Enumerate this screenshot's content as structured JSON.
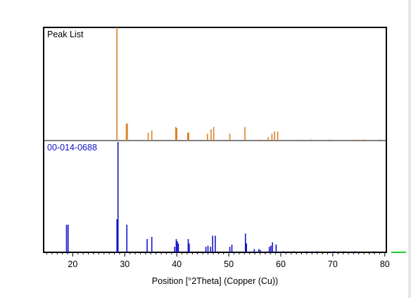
{
  "chart_data": {
    "type": "bar",
    "xlabel": "Position [°2Theta] (Copper (Cu))",
    "xlim": [
      14.4,
      80.3
    ],
    "xticks": [
      20,
      30,
      40,
      50,
      60,
      70,
      80
    ],
    "grid": false,
    "panels": [
      {
        "label": "Peak List",
        "label_color": "#000000",
        "color": "#d9822b",
        "max": 100,
        "peaks": [
          {
            "x": 28.5,
            "y": 100
          },
          {
            "x": 30.3,
            "y": 15
          },
          {
            "x": 30.5,
            "y": 15
          },
          {
            "x": 34.5,
            "y": 7
          },
          {
            "x": 35.2,
            "y": 9
          },
          {
            "x": 39.8,
            "y": 12
          },
          {
            "x": 40.0,
            "y": 11
          },
          {
            "x": 42.1,
            "y": 7
          },
          {
            "x": 42.3,
            "y": 7
          },
          {
            "x": 45.9,
            "y": 6
          },
          {
            "x": 46.6,
            "y": 10
          },
          {
            "x": 47.1,
            "y": 12
          },
          {
            "x": 50.2,
            "y": 6
          },
          {
            "x": 53.1,
            "y": 12
          },
          {
            "x": 55.8,
            "y": 1
          },
          {
            "x": 57.6,
            "y": 3
          },
          {
            "x": 58.3,
            "y": 6
          },
          {
            "x": 58.8,
            "y": 8
          },
          {
            "x": 59.4,
            "y": 8
          },
          {
            "x": 63.4,
            "y": 1
          },
          {
            "x": 65.8,
            "y": 1
          },
          {
            "x": 69.4,
            "y": 1
          },
          {
            "x": 74.8,
            "y": 1
          },
          {
            "x": 76.1,
            "y": 1
          },
          {
            "x": 79.0,
            "y": 1
          }
        ]
      },
      {
        "label": "00-014-0688",
        "label_color": "#1414c8",
        "color": "#1414c8",
        "max": 100,
        "peaks": [
          {
            "x": 18.8,
            "y": 25
          },
          {
            "x": 19.1,
            "y": 25
          },
          {
            "x": 28.5,
            "y": 30
          },
          {
            "x": 28.7,
            "y": 100
          },
          {
            "x": 30.4,
            "y": 25
          },
          {
            "x": 34.3,
            "y": 12
          },
          {
            "x": 35.2,
            "y": 14
          },
          {
            "x": 39.6,
            "y": 5
          },
          {
            "x": 39.9,
            "y": 12
          },
          {
            "x": 40.1,
            "y": 10
          },
          {
            "x": 40.3,
            "y": 8
          },
          {
            "x": 42.2,
            "y": 12
          },
          {
            "x": 42.4,
            "y": 8
          },
          {
            "x": 45.6,
            "y": 5
          },
          {
            "x": 46.0,
            "y": 6
          },
          {
            "x": 46.5,
            "y": 5
          },
          {
            "x": 46.9,
            "y": 15
          },
          {
            "x": 47.4,
            "y": 15
          },
          {
            "x": 50.2,
            "y": 5
          },
          {
            "x": 50.6,
            "y": 7
          },
          {
            "x": 53.2,
            "y": 17
          },
          {
            "x": 53.4,
            "y": 8
          },
          {
            "x": 54.9,
            "y": 3
          },
          {
            "x": 55.8,
            "y": 3
          },
          {
            "x": 56.1,
            "y": 2
          },
          {
            "x": 57.8,
            "y": 5
          },
          {
            "x": 58.1,
            "y": 6
          },
          {
            "x": 58.4,
            "y": 9
          },
          {
            "x": 59.1,
            "y": 7
          },
          {
            "x": 60.5,
            "y": 1
          },
          {
            "x": 62.4,
            "y": 1
          },
          {
            "x": 64.9,
            "y": 1
          },
          {
            "x": 66.9,
            "y": 1
          },
          {
            "x": 70.3,
            "y": 1
          },
          {
            "x": 72.1,
            "y": 1
          },
          {
            "x": 74.3,
            "y": 1
          },
          {
            "x": 77.9,
            "y": 1
          }
        ]
      }
    ]
  },
  "marker_color": "#22cc22"
}
